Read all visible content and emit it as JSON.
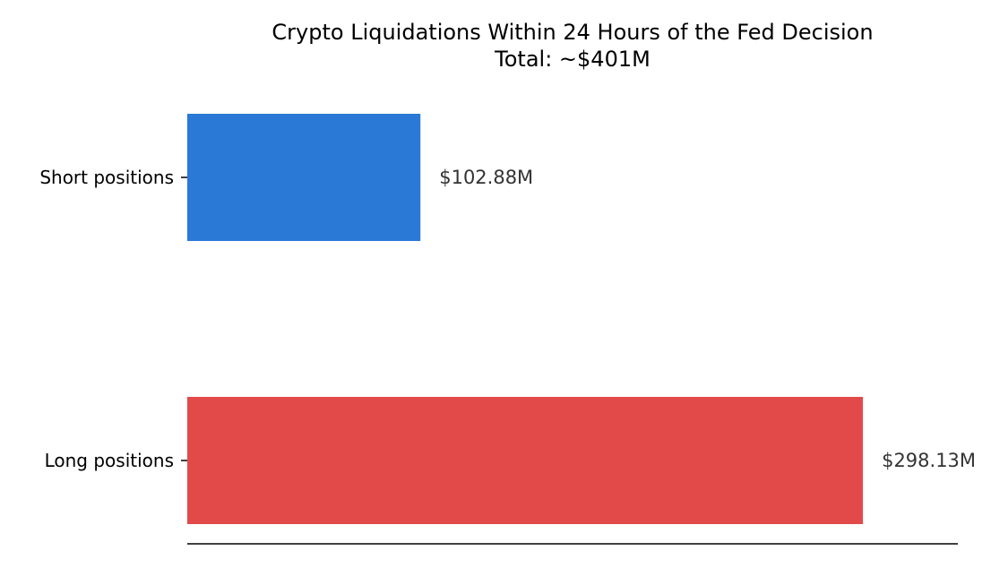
{
  "chart_data": {
    "type": "bar",
    "orientation": "horizontal",
    "title": "Crypto Liquidations Within 24 Hours of the Fed Decision",
    "subtitle": "Total: ~$401M",
    "categories": [
      "Short positions",
      "Long positions"
    ],
    "values": [
      102.88,
      298.13
    ],
    "value_labels": [
      "$102.88M",
      "$298.13M"
    ],
    "colors": [
      "#2a79d6",
      "#e24a4a"
    ],
    "xlim": [
      0,
      340
    ],
    "grid": false,
    "legend": "none",
    "xlabel": "",
    "ylabel": ""
  }
}
